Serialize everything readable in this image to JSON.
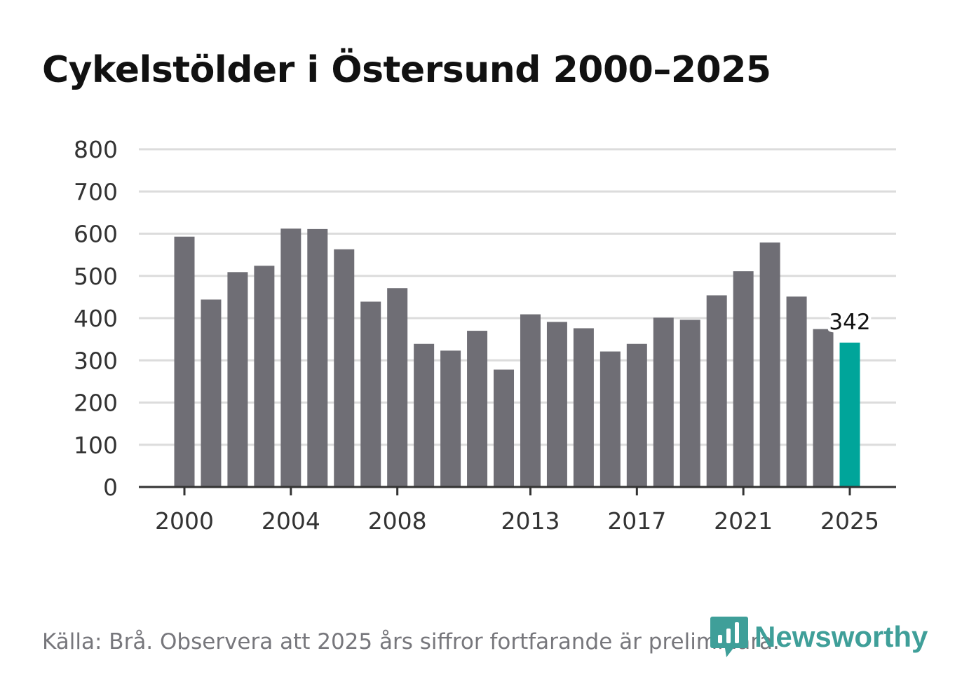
{
  "chart_data": {
    "type": "bar",
    "title": "Cykelstölder i Östersund 2000–2025",
    "xlabel": "",
    "ylabel": "",
    "ylim": [
      0,
      800
    ],
    "yticks": [
      0,
      100,
      200,
      300,
      400,
      500,
      600,
      700,
      800
    ],
    "grid": true,
    "categories": [
      2000,
      2001,
      2002,
      2003,
      2004,
      2005,
      2006,
      2007,
      2008,
      2009,
      2010,
      2011,
      2012,
      2013,
      2014,
      2015,
      2016,
      2017,
      2018,
      2019,
      2020,
      2021,
      2022,
      2023,
      2024,
      2025
    ],
    "xtick_labels": [
      2000,
      2004,
      2008,
      2013,
      2017,
      2021,
      2025
    ],
    "values": [
      593,
      444,
      509,
      524,
      612,
      611,
      563,
      439,
      471,
      339,
      323,
      370,
      278,
      409,
      391,
      376,
      321,
      339,
      401,
      396,
      454,
      511,
      579,
      451,
      374,
      342
    ],
    "highlight": {
      "category": 2025,
      "label": "342"
    },
    "colors": {
      "bar": "#6f6e75",
      "highlight": "#00a59a",
      "grid": "#dcdcdc",
      "axis": "#333333"
    }
  },
  "footer": {
    "source": "Källa: Brå. Observera att 2025 års siffror fortfarande är preliminära.",
    "brand": "Newsworthy",
    "brand_color": "#3f9f99"
  }
}
